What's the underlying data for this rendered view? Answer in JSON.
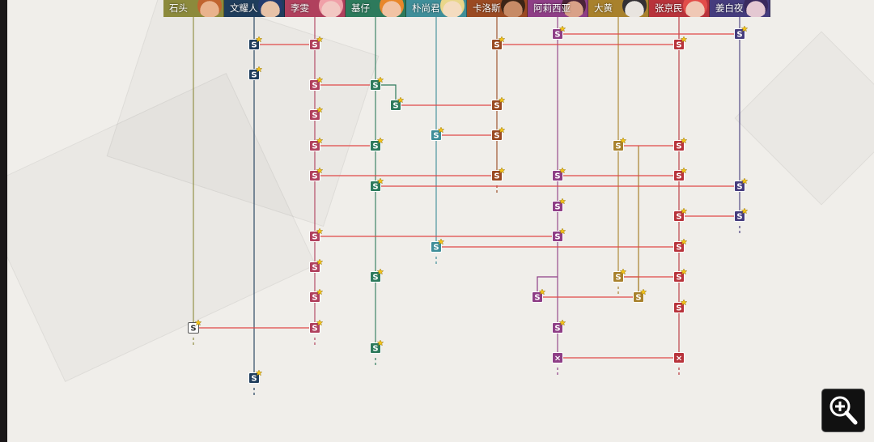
{
  "characters": [
    {
      "key": "shitou",
      "name": "石头",
      "color": "#8c8a3c",
      "skin": "#e9b38d",
      "hair": "#c0642f"
    },
    {
      "key": "wen",
      "name": "文耀人",
      "color": "#1f3d5c",
      "skin": "#e7c2a8",
      "hair": "#233a6e"
    },
    {
      "key": "li",
      "name": "李雯",
      "color": "#b0405d",
      "skin": "#f2c8c3",
      "hair": "#f0a0a8"
    },
    {
      "key": "ji",
      "name": "基仔",
      "color": "#2d7a5c",
      "skin": "#f1c3a4",
      "hair": "#e8872a"
    },
    {
      "key": "piao",
      "name": "朴尚君",
      "color": "#3f8e99",
      "skin": "#f4dcc0",
      "hair": "#e9d68a"
    },
    {
      "key": "kalos",
      "name": "卡洛斯",
      "color": "#9a4a22",
      "skin": "#c78b66",
      "hair": "#3b2416"
    },
    {
      "key": "alixiya",
      "name": "阿莉西亚",
      "color": "#8e3e86",
      "skin": "#d9a188",
      "hair": "#4a2436"
    },
    {
      "key": "dahuang",
      "name": "大黄",
      "color": "#a8812c",
      "skin": "#e8e4df",
      "hair": "#333033"
    },
    {
      "key": "zhang",
      "name": "张京民",
      "color": "#b8333b",
      "skin": "#f0c8b5",
      "hair": "#e24d49"
    },
    {
      "key": "jiang",
      "name": "姜白夜",
      "color": "#453c7d",
      "skin": "#e4c8d2",
      "hair": "#3a2a5e"
    }
  ],
  "nodes": [
    {
      "id": "n1",
      "char": "shitou",
      "row": 405,
      "kind": "start",
      "label": "S"
    },
    {
      "id": "n2",
      "char": "wen",
      "row": 55,
      "kind": "story",
      "label": "S"
    },
    {
      "id": "n3",
      "char": "wen",
      "row": 92,
      "kind": "story",
      "label": "S"
    },
    {
      "id": "n4",
      "char": "wen",
      "row": 467,
      "kind": "story",
      "label": "S"
    },
    {
      "id": "n5",
      "char": "li",
      "row": 55,
      "kind": "story",
      "label": "S"
    },
    {
      "id": "n6",
      "char": "li",
      "row": 105,
      "kind": "story",
      "label": "S"
    },
    {
      "id": "n7",
      "char": "li",
      "row": 142,
      "kind": "story",
      "label": "S"
    },
    {
      "id": "n8",
      "char": "li",
      "row": 180,
      "kind": "story",
      "label": "S"
    },
    {
      "id": "n9",
      "char": "li",
      "row": 217,
      "kind": "story",
      "label": "S"
    },
    {
      "id": "n10",
      "char": "li",
      "row": 292,
      "kind": "story",
      "label": "S"
    },
    {
      "id": "n11",
      "char": "li",
      "row": 330,
      "kind": "story",
      "label": "S"
    },
    {
      "id": "n12",
      "char": "li",
      "row": 367,
      "kind": "story",
      "label": "S"
    },
    {
      "id": "n13",
      "char": "li",
      "row": 405,
      "kind": "story",
      "label": "S"
    },
    {
      "id": "n14",
      "char": "ji",
      "row": 105,
      "kind": "story",
      "label": "S"
    },
    {
      "id": "n15",
      "char": "ji",
      "row": 180,
      "kind": "story",
      "label": "S"
    },
    {
      "id": "n16",
      "char": "ji",
      "row": 230,
      "kind": "story",
      "label": "S"
    },
    {
      "id": "n17",
      "char": "ji",
      "row": 342,
      "kind": "story",
      "label": "S"
    },
    {
      "id": "n18",
      "char": "ji",
      "row": 430,
      "kind": "story",
      "label": "S"
    },
    {
      "id": "n19",
      "char": "ji",
      "row": 130,
      "kind": "story",
      "label": "S",
      "offset": 25
    },
    {
      "id": "n20",
      "char": "piao",
      "row": 167,
      "kind": "story",
      "label": "S"
    },
    {
      "id": "n21",
      "char": "piao",
      "row": 305,
      "kind": "story",
      "label": "S"
    },
    {
      "id": "n22",
      "char": "kalos",
      "row": 55,
      "kind": "story",
      "label": "S"
    },
    {
      "id": "n23",
      "char": "kalos",
      "row": 130,
      "kind": "story",
      "label": "S"
    },
    {
      "id": "n24",
      "char": "kalos",
      "row": 167,
      "kind": "story",
      "label": "S"
    },
    {
      "id": "n25",
      "char": "kalos",
      "row": 217,
      "kind": "story",
      "label": "S"
    },
    {
      "id": "n26",
      "char": "alixiya",
      "row": 42,
      "kind": "story",
      "label": "S"
    },
    {
      "id": "n27",
      "char": "alixiya",
      "row": 217,
      "kind": "story",
      "label": "S"
    },
    {
      "id": "n28",
      "char": "alixiya",
      "row": 255,
      "kind": "story",
      "label": "S"
    },
    {
      "id": "n29",
      "char": "alixiya",
      "row": 292,
      "kind": "story",
      "label": "S"
    },
    {
      "id": "n30",
      "char": "alixiya",
      "row": 367,
      "kind": "story",
      "label": "S",
      "offset": -25
    },
    {
      "id": "n31",
      "char": "alixiya",
      "row": 405,
      "kind": "story",
      "label": "S"
    },
    {
      "id": "n32",
      "char": "alixiya",
      "row": 442,
      "kind": "locked",
      "label": "×"
    },
    {
      "id": "n33",
      "char": "dahuang",
      "row": 180,
      "kind": "story",
      "label": "S"
    },
    {
      "id": "n34",
      "char": "dahuang",
      "row": 342,
      "kind": "story",
      "label": "S"
    },
    {
      "id": "n35",
      "char": "dahuang",
      "row": 367,
      "kind": "story",
      "label": "S",
      "offset": 25
    },
    {
      "id": "n36",
      "char": "zhang",
      "row": 55,
      "kind": "story",
      "label": "S"
    },
    {
      "id": "n37",
      "char": "zhang",
      "row": 180,
      "kind": "story",
      "label": "S"
    },
    {
      "id": "n38",
      "char": "zhang",
      "row": 217,
      "kind": "story",
      "label": "S"
    },
    {
      "id": "n39",
      "char": "zhang",
      "row": 267,
      "kind": "story",
      "label": "S"
    },
    {
      "id": "n40",
      "char": "zhang",
      "row": 305,
      "kind": "story",
      "label": "S"
    },
    {
      "id": "n41",
      "char": "zhang",
      "row": 342,
      "kind": "story",
      "label": "S"
    },
    {
      "id": "n42",
      "char": "zhang",
      "row": 380,
      "kind": "story",
      "label": "S"
    },
    {
      "id": "n43",
      "char": "zhang",
      "row": 442,
      "kind": "locked",
      "label": "×"
    },
    {
      "id": "n44",
      "char": "jiang",
      "row": 42,
      "kind": "story",
      "label": "S"
    },
    {
      "id": "n45",
      "char": "jiang",
      "row": 230,
      "kind": "story",
      "label": "S"
    },
    {
      "id": "n46",
      "char": "jiang",
      "row": 267,
      "kind": "story",
      "label": "S"
    }
  ],
  "links": [
    [
      "n2",
      "n5"
    ],
    [
      "n6",
      "n14"
    ],
    [
      "n19",
      "n23"
    ],
    [
      "n20",
      "n24"
    ],
    [
      "n8",
      "n15"
    ],
    [
      "n9",
      "n25"
    ],
    [
      "n27",
      "n38"
    ],
    [
      "n16",
      "n45"
    ],
    [
      "n39",
      "n46"
    ],
    [
      "n10",
      "n29"
    ],
    [
      "n21",
      "n40"
    ],
    [
      "n34",
      "n41"
    ],
    [
      "n30",
      "n35"
    ],
    [
      "n1",
      "n13"
    ],
    [
      "n32",
      "n43"
    ],
    [
      "n26",
      "n44"
    ],
    [
      "n22",
      "n36"
    ],
    [
      "n33",
      "n37"
    ]
  ],
  "zoom": {
    "icon": "zoom-in-icon"
  }
}
